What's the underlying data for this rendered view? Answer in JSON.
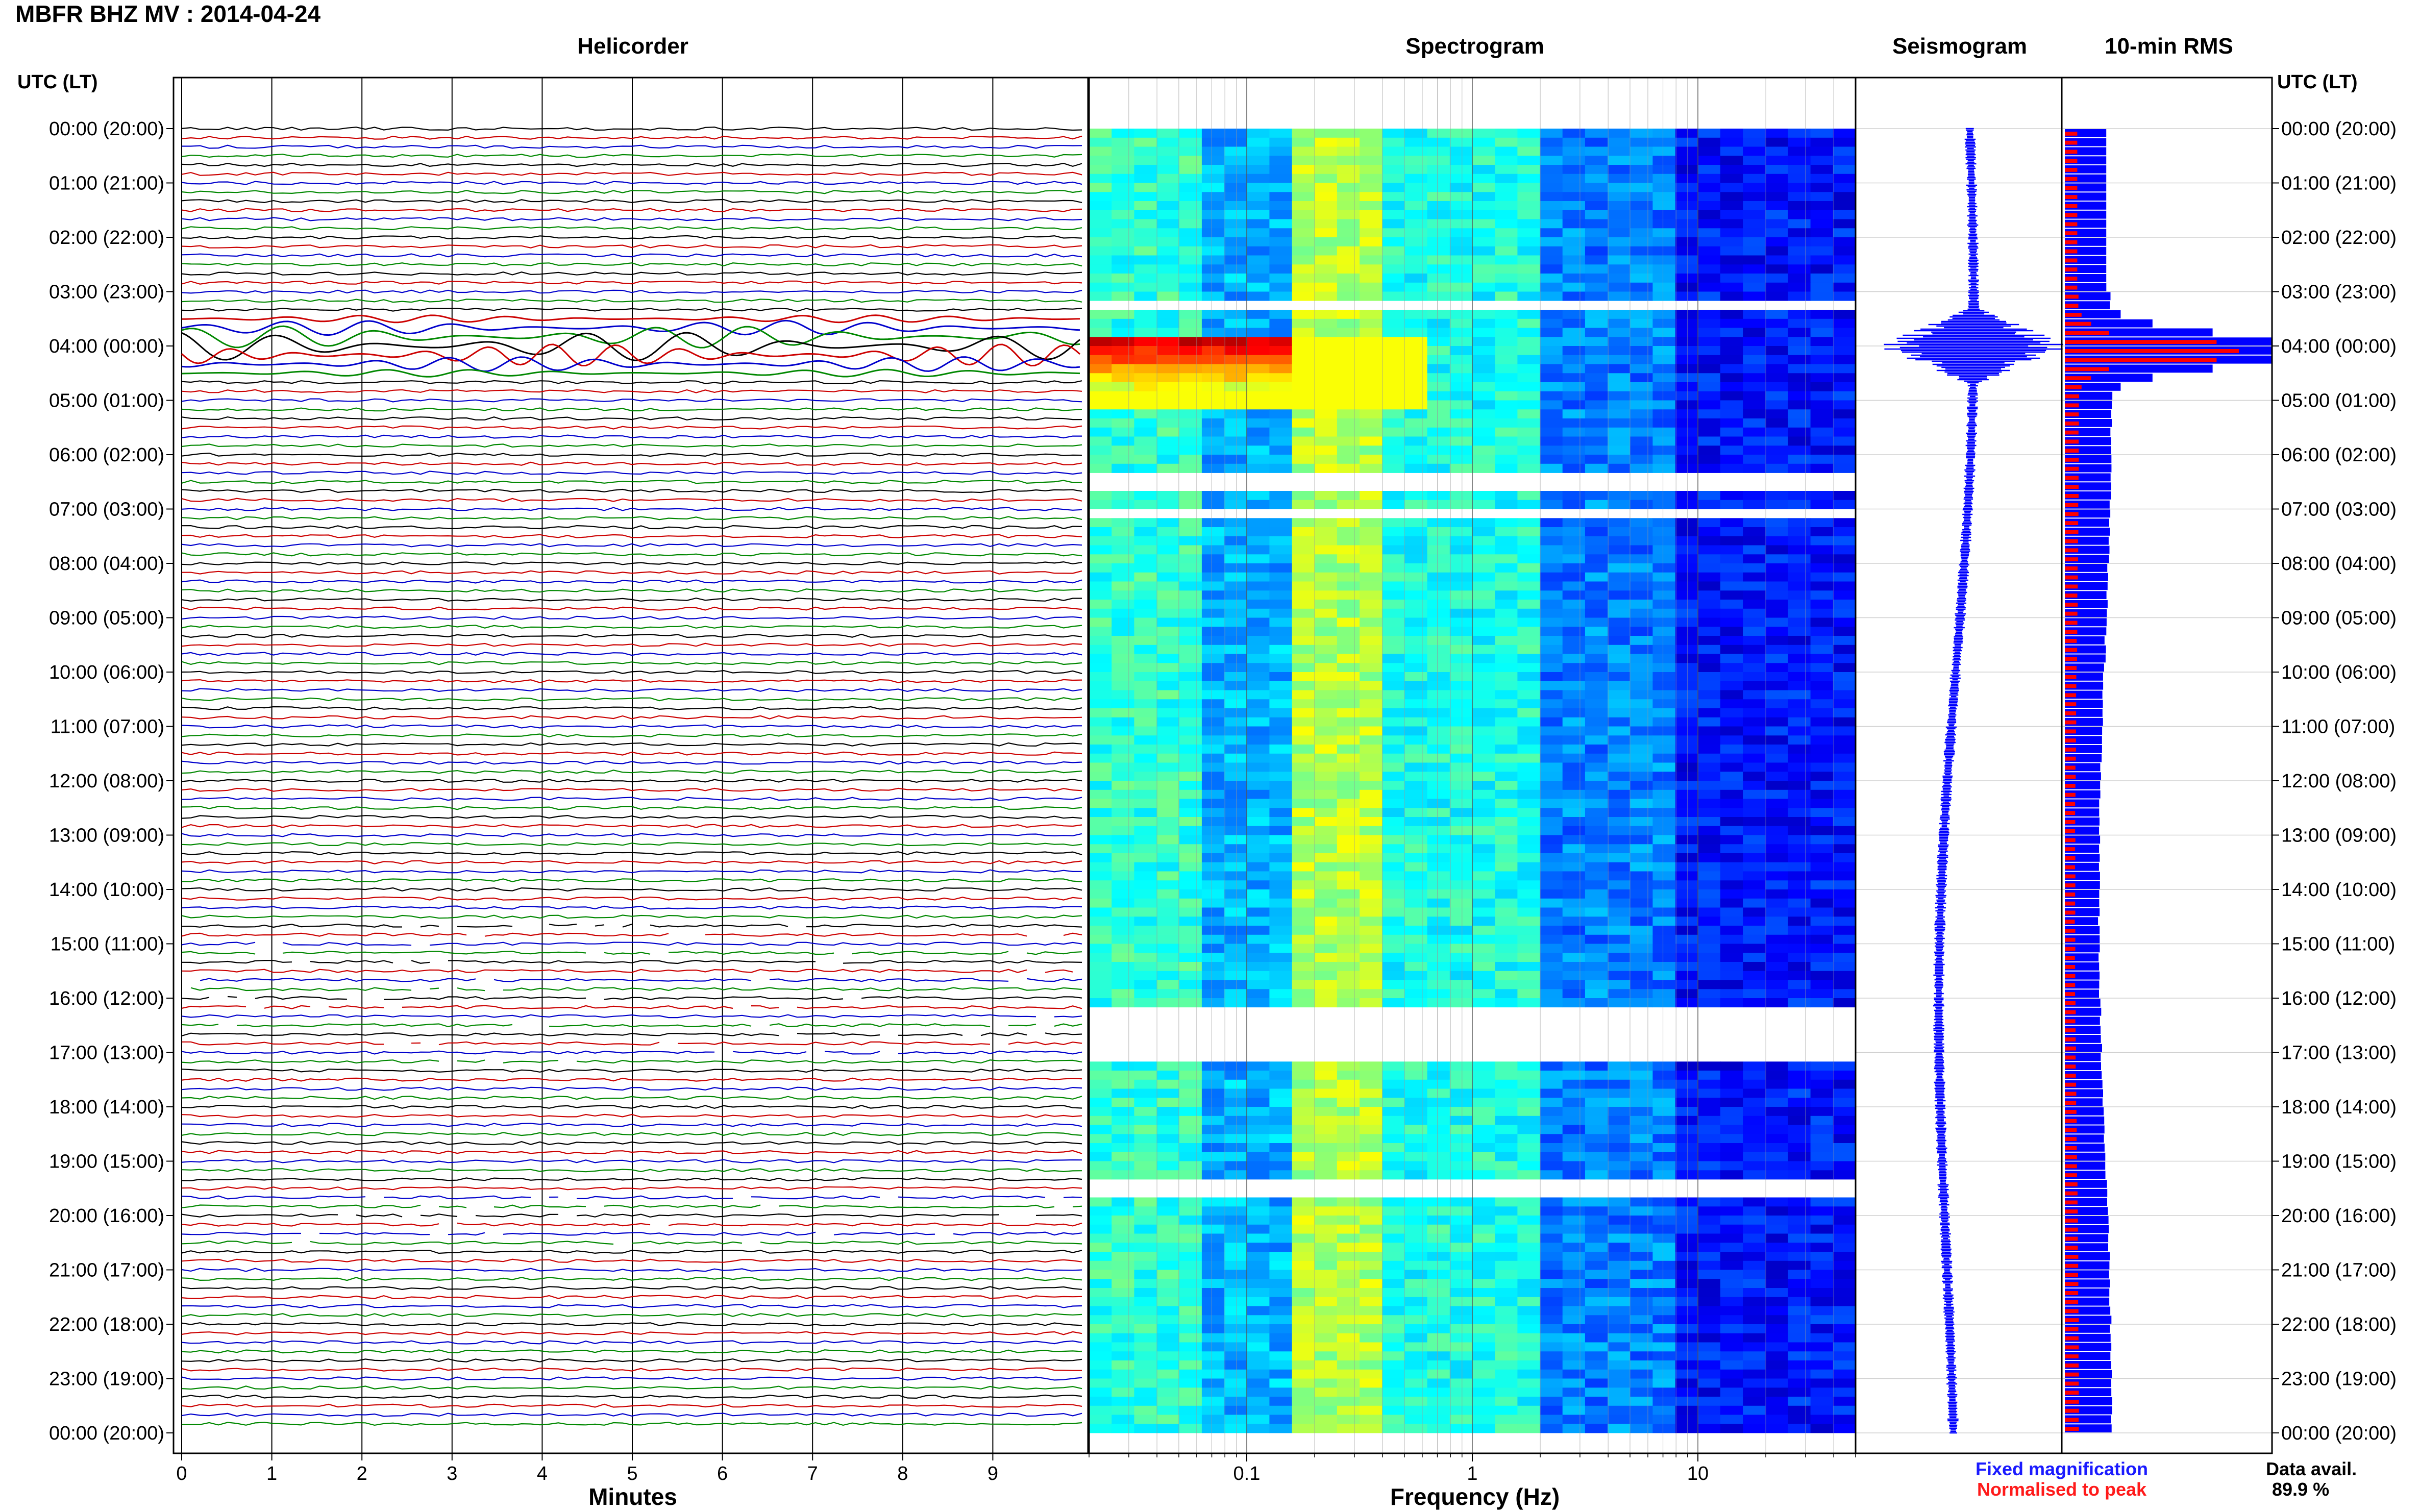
{
  "title": "MBFR BHZ MV : 2014-04-24",
  "panels": {
    "helicorder": "Helicorder",
    "spectrogram": "Spectrogram",
    "seismogram": "Seismogram",
    "rms": "10-min RMS"
  },
  "time_axis_title_left": "UTC (LT)",
  "time_axis_title_right": "UTC (LT)",
  "legend": {
    "fixed": "Fixed magnification",
    "normalised": "Normalised to peak",
    "fixed_color": "#1a1aff",
    "normalised_color": "#ff1a1a"
  },
  "data_avail": {
    "label": "Data avail.",
    "value": "89.9 %"
  },
  "colors": {
    "trace_cycle": [
      "#000000",
      "#cc0000",
      "#0000cc",
      "#008800"
    ],
    "rms_fixed": "#0000ff",
    "rms_normalised": "#ff0000"
  },
  "chart_data": [
    {
      "type": "line",
      "panel": "helicorder",
      "xlabel": "Minutes",
      "x_ticks": [
        "0",
        "1",
        "2",
        "3",
        "4",
        "5",
        "6",
        "7",
        "8",
        "9"
      ],
      "xlim": [
        0,
        10
      ],
      "rows_per_hour": 6,
      "hours": 24,
      "y_tick_labels": [
        "00:00 (20:00)",
        "01:00 (21:00)",
        "02:00 (22:00)",
        "03:00 (23:00)",
        "04:00 (00:00)",
        "05:00 (01:00)",
        "06:00 (02:00)",
        "07:00 (03:00)",
        "08:00 (04:00)",
        "09:00 (05:00)",
        "10:00 (06:00)",
        "11:00 (07:00)",
        "12:00 (08:00)",
        "13:00 (09:00)",
        "14:00 (10:00)",
        "15:00 (11:00)",
        "16:00 (12:00)",
        "17:00 (13:00)",
        "18:00 (14:00)",
        "19:00 (15:00)",
        "20:00 (16:00)",
        "21:00 (17:00)",
        "22:00 (18:00)",
        "23:00 (19:00)",
        "00:00 (20:00)"
      ],
      "event_window_hours": [
        3.5,
        4.5
      ]
    },
    {
      "type": "heatmap",
      "panel": "spectrogram",
      "xlabel": "Frequency (Hz)",
      "xscale": "log",
      "x_ticks": [
        "0.1",
        "1",
        "10"
      ],
      "xlim": [
        0.02,
        50
      ],
      "colormap": "jet"
    },
    {
      "type": "line",
      "panel": "seismogram",
      "y_range_hours": [
        0,
        24
      ],
      "peak_hour": 4.0
    },
    {
      "type": "bar",
      "panel": "rms",
      "interval_minutes": 10,
      "series": [
        {
          "name": "Fixed magnification",
          "peak_hour": 4.0
        },
        {
          "name": "Normalised to peak",
          "peak_hour": 4.0
        }
      ]
    }
  ]
}
